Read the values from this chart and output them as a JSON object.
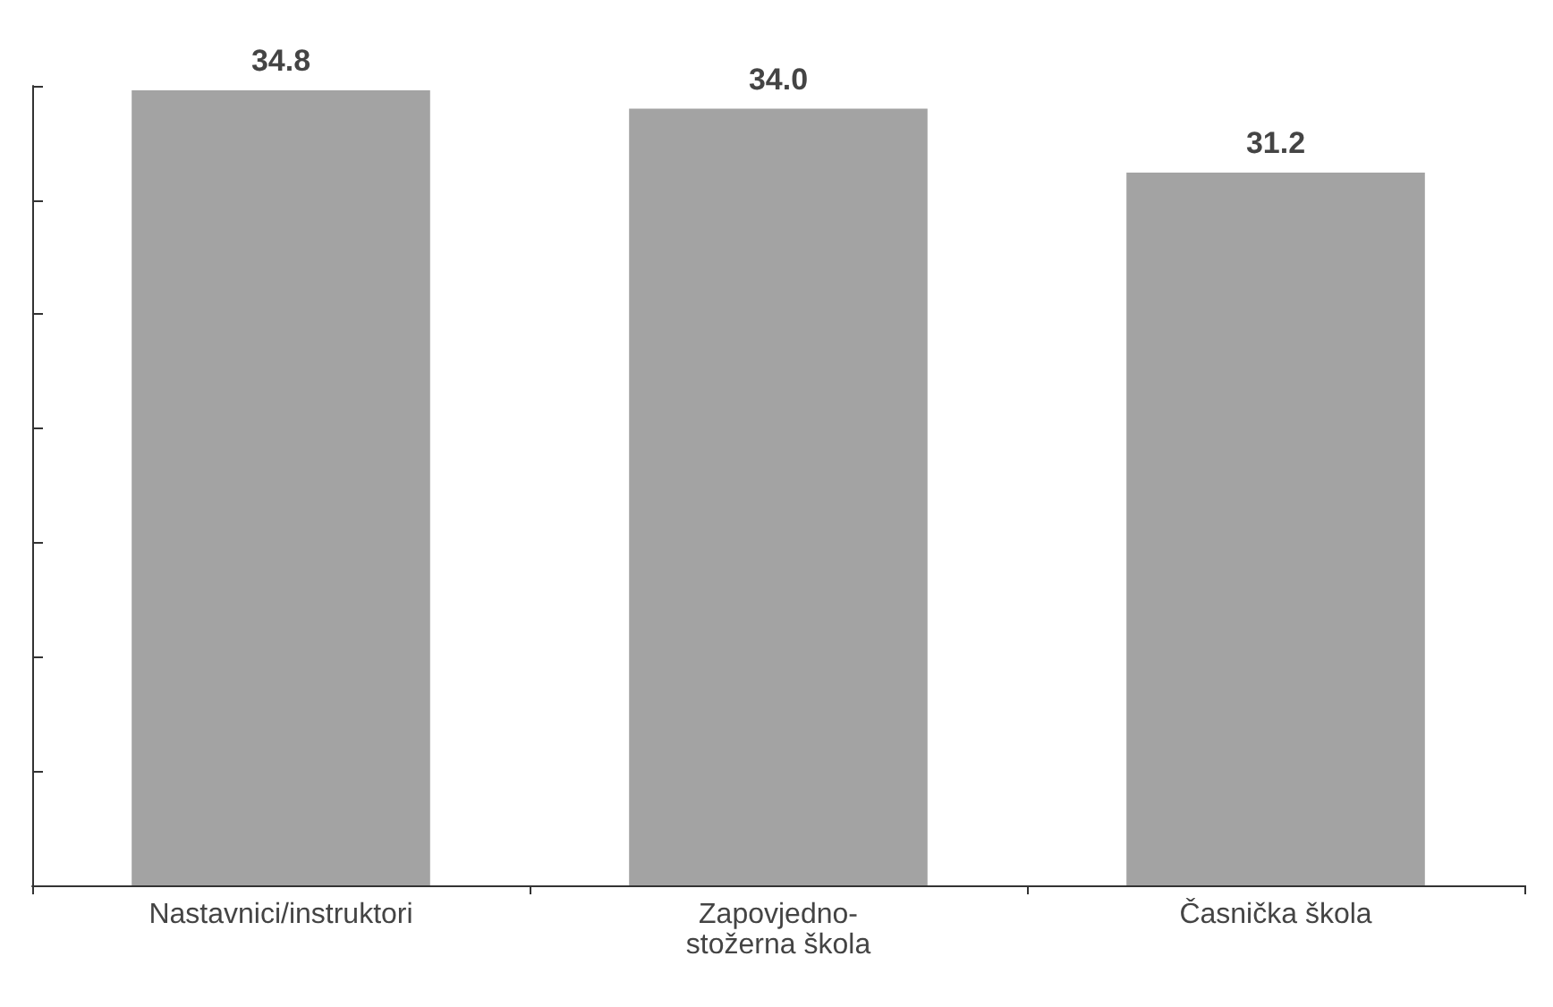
{
  "chart_data": {
    "type": "bar",
    "categories": [
      "Nastavnici/instruktori",
      "Zapovjedno-\nstožerna škola",
      "Časnička škola"
    ],
    "values": [
      34.8,
      34.0,
      31.2
    ],
    "color": "#a3a3a3",
    "ylim": [
      0,
      35
    ],
    "yticks": [
      {
        "value": 0,
        "label": null
      },
      {
        "value": 5,
        "label": null
      },
      {
        "value": 10,
        "label": null
      },
      {
        "value": 15,
        "label": null
      },
      {
        "value": 20,
        "label": null
      },
      {
        "value": 25,
        "label": null
      },
      {
        "value": 30,
        "label": null
      },
      {
        "value": 35,
        "label": null
      }
    ],
    "tick_labels": "x",
    "value_labels": [
      "34.8",
      "34.0",
      "31.2"
    ],
    "grid": false
  }
}
